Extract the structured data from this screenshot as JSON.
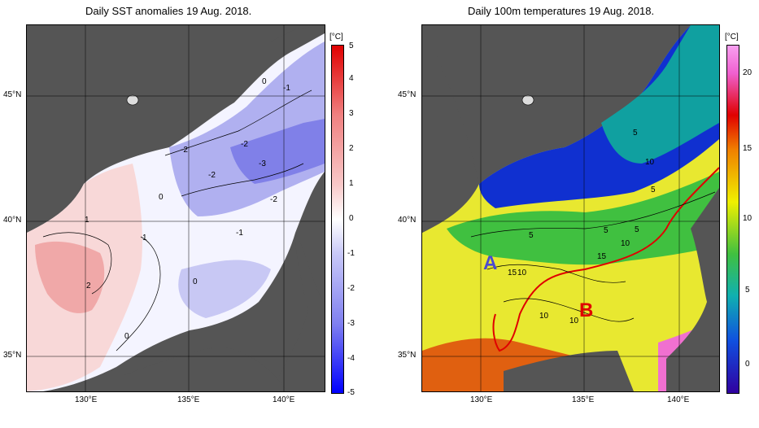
{
  "left": {
    "title": "Daily SST anomalies 19 Aug. 2018.",
    "unit": "[°C]",
    "colorbar_labels": [
      "5",
      "4",
      "3",
      "2",
      "1",
      "0",
      "-1",
      "-2",
      "-3",
      "-4",
      "-5"
    ],
    "contour_labels": [
      "0",
      "-1",
      "-2",
      "-2",
      "-3",
      "-2",
      "-2",
      "0",
      "1",
      "1",
      "-1",
      "2",
      "0",
      "0"
    ]
  },
  "right": {
    "title": "Daily 100m temperatures 19 Aug. 2018.",
    "unit": "[°C]",
    "colorbar_labels": [
      "20",
      "15",
      "10",
      "5",
      "0"
    ],
    "contour_labels": [
      "5",
      "10",
      "5",
      "5",
      "5",
      "5",
      "10",
      "15",
      "15",
      "10",
      "10",
      "10"
    ],
    "markers": [
      "A",
      "B"
    ]
  },
  "axes": {
    "lat_labels": [
      "45°N",
      "40°N",
      "35°N"
    ],
    "lon_labels": [
      "130°E",
      "135°E",
      "140°E"
    ]
  },
  "colors": {
    "land": "#555555",
    "anomaly_positive": "#e84040",
    "anomaly_negative": "#3b3bff",
    "warm_current_line": "#e00000",
    "marker_A": "#4a4ad0",
    "marker_B": "#e00000"
  }
}
